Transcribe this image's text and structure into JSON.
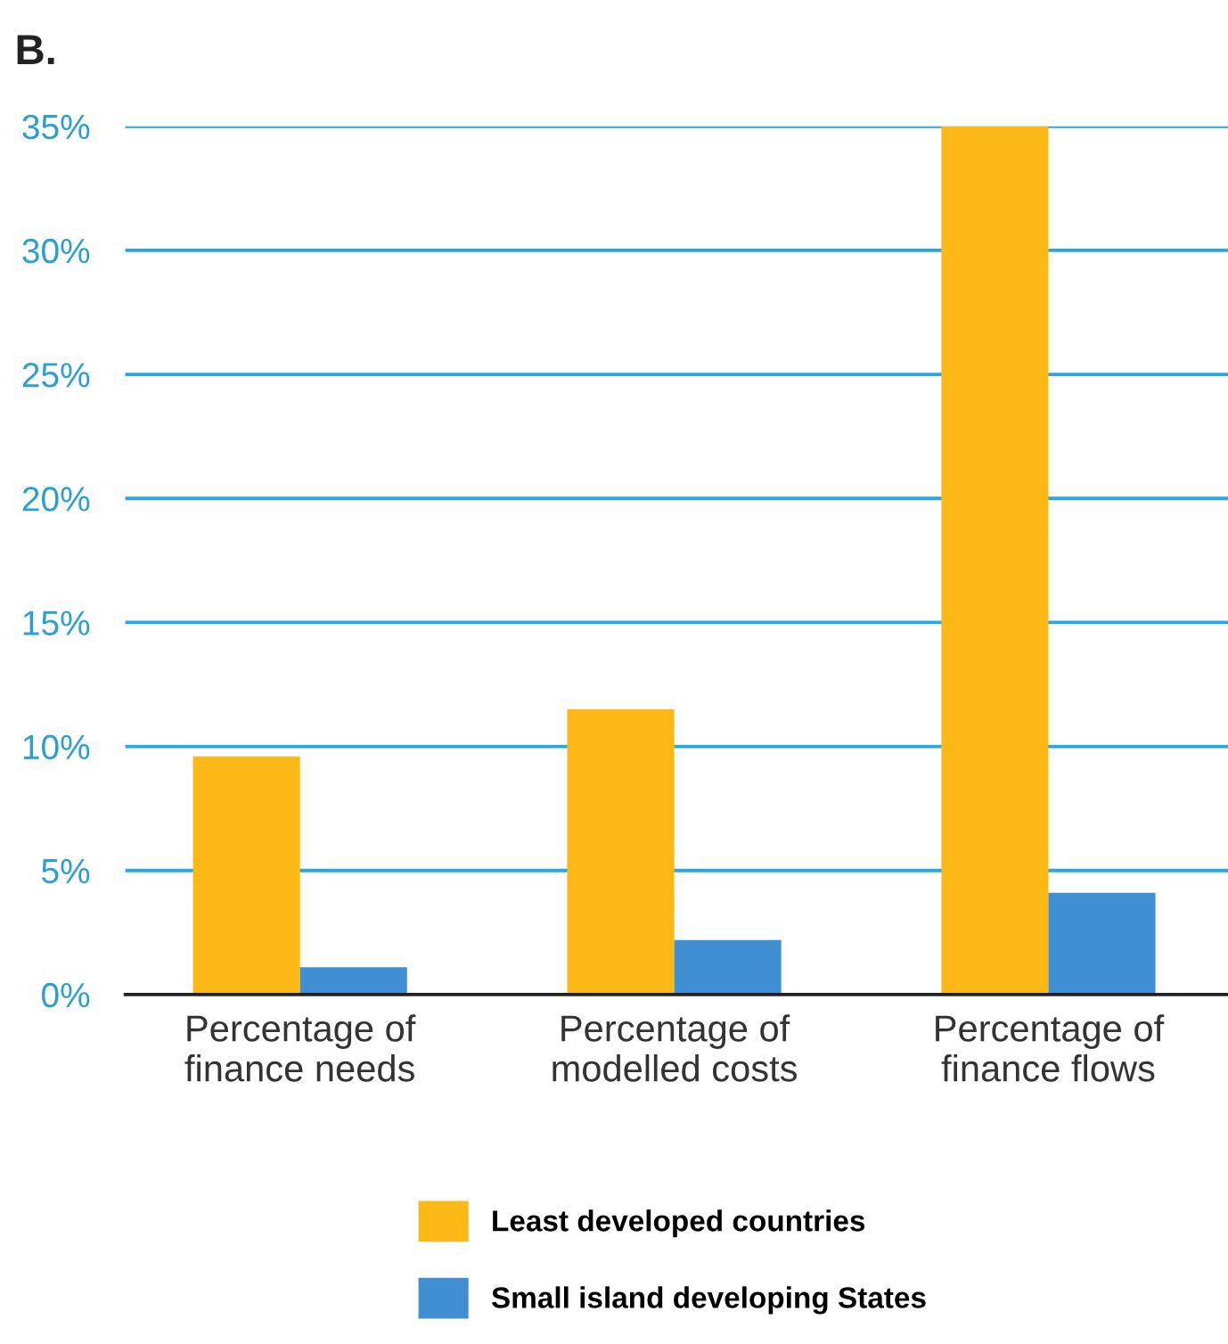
{
  "chart_data": {
    "type": "bar",
    "title": "B.",
    "categories": [
      "Percentage of\nfinance needs",
      "Percentage of\nmodelled costs",
      "Percentage of\nfinance flows"
    ],
    "series": [
      {
        "name": "Least developed countries",
        "color": "#fbb817",
        "values": [
          9.6,
          11.5,
          35
        ]
      },
      {
        "name": "Small island developing States",
        "color": "#3f8fd2",
        "values": [
          1.1,
          2.2,
          4.1
        ]
      }
    ],
    "ylim": [
      0,
      35
    ],
    "yticks": [
      {
        "value": 0,
        "label": "0%"
      },
      {
        "value": 5,
        "label": "5%"
      },
      {
        "value": 10,
        "label": "10%"
      },
      {
        "value": 15,
        "label": "15%"
      },
      {
        "value": 20,
        "label": "20%"
      },
      {
        "value": 25,
        "label": "25%"
      },
      {
        "value": 30,
        "label": "30%"
      },
      {
        "value": 35,
        "label": "35%"
      }
    ],
    "grid": "y",
    "legend": "bottom"
  }
}
